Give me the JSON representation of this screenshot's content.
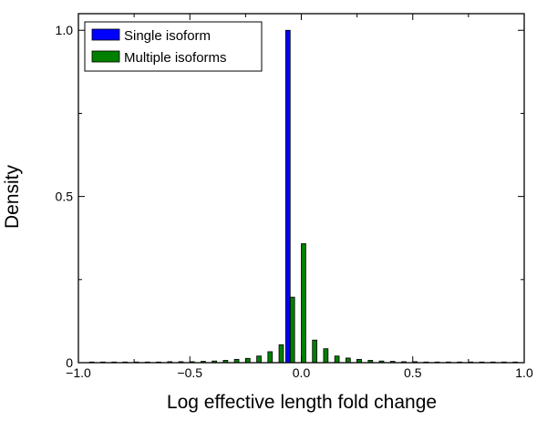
{
  "chart_data": {
    "type": "bar",
    "xlabel": "Log effective length fold change",
    "ylabel": "Density",
    "xlim": [
      -1.0,
      1.0
    ],
    "ylim": [
      0,
      1.05
    ],
    "x_ticks": [
      -1.0,
      -0.5,
      0.0,
      0.5,
      1.0
    ],
    "x_tick_labels": [
      "−1.0",
      "−0.5",
      "0.0",
      "0.5",
      "1.0"
    ],
    "y_ticks": [
      0,
      0.5,
      1.0
    ],
    "y_tick_labels": [
      "0",
      "0.5",
      "1.0"
    ],
    "grid": false,
    "legend_position": "top-left",
    "bin_centers": [
      -0.95,
      -0.9,
      -0.85,
      -0.8,
      -0.75,
      -0.7,
      -0.65,
      -0.6,
      -0.55,
      -0.5,
      -0.45,
      -0.4,
      -0.35,
      -0.3,
      -0.25,
      -0.2,
      -0.15,
      -0.1,
      -0.05,
      0.0,
      0.05,
      0.1,
      0.15,
      0.2,
      0.25,
      0.3,
      0.35,
      0.4,
      0.45,
      0.5,
      0.55,
      0.6,
      0.65,
      0.7,
      0.75,
      0.8,
      0.85,
      0.9,
      0.95
    ],
    "series": [
      {
        "name": "Single isoform",
        "color": "#0000ff",
        "values": [
          0,
          0,
          0,
          0,
          0,
          0,
          0,
          0,
          0,
          0,
          0,
          0,
          0,
          0,
          0,
          0,
          0,
          0,
          1.0,
          0,
          0,
          0,
          0,
          0,
          0,
          0,
          0,
          0,
          0,
          0,
          0,
          0,
          0,
          0,
          0,
          0,
          0,
          0,
          0
        ]
      },
      {
        "name": "Multiple isoforms",
        "color": "#008000",
        "values": [
          0.002,
          0.002,
          0.002,
          0.002,
          0.002,
          0.002,
          0.002,
          0.003,
          0.003,
          0.003,
          0.004,
          0.005,
          0.007,
          0.01,
          0.013,
          0.02,
          0.033,
          0.054,
          0.197,
          0.358,
          0.068,
          0.042,
          0.02,
          0.014,
          0.01,
          0.007,
          0.005,
          0.004,
          0.003,
          0.003,
          0.002,
          0.002,
          0.002,
          0.002,
          0.002,
          0.002,
          0.002,
          0.002,
          0.002
        ]
      }
    ]
  }
}
